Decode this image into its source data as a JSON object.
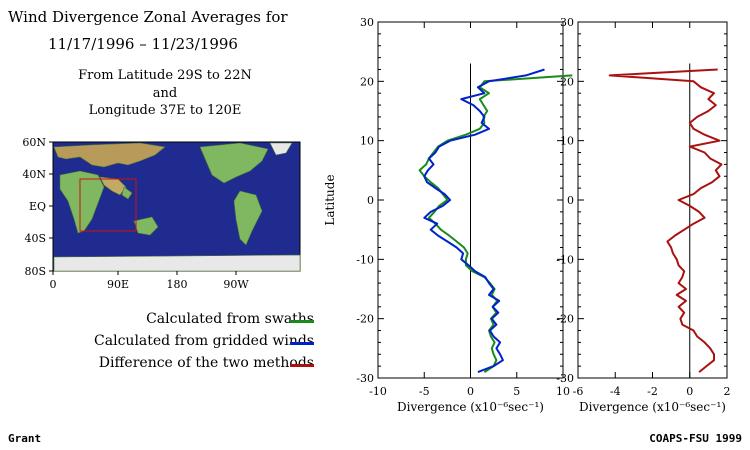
{
  "header": {
    "title_line1": "Wind Divergence Zonal Averages for",
    "title_line2": "11/17/1996 – 11/23/1996",
    "sub_line1": "From Latitude 29S to 22N",
    "sub_line2": "and",
    "sub_line3": "Longitude 37E to 120E"
  },
  "map": {
    "lat_labels": [
      "60N",
      "40N",
      "EQ",
      "40S",
      "80S"
    ],
    "lon_labels": [
      "0",
      "90E",
      "180",
      "90W"
    ]
  },
  "legend": [
    {
      "label": "Calculated from swaths",
      "color": "#1a8a1a"
    },
    {
      "label": "Calculated from gridded winds",
      "color": "#0022cc"
    },
    {
      "label": "Difference of the two methods",
      "color": "#aa1111"
    }
  ],
  "footer": {
    "left": "Grant",
    "right": "COAPS-FSU 1999"
  },
  "chart_data": [
    {
      "type": "line",
      "ylabel": "Latitude",
      "xlabel": "Divergence (x10⁻⁶sec⁻¹)",
      "xlim": [
        -10,
        10
      ],
      "ylim": [
        -30,
        30
      ],
      "xticks": [
        -10,
        -5,
        0,
        5,
        10
      ],
      "yticks": [
        -30,
        -20,
        -10,
        0,
        10,
        20,
        30
      ],
      "series": [
        {
          "name": "Calculated from swaths",
          "color": "#1a8a1a",
          "lat": [
            -29,
            -28,
            -27,
            -26,
            -25,
            -24,
            -23,
            -22,
            -21,
            -20,
            -19,
            -18,
            -17,
            -16,
            -15,
            -14,
            -13,
            -12,
            -11,
            -10,
            -9,
            -8,
            -7,
            -6,
            -5,
            -4,
            -3,
            -2,
            -1,
            0,
            1,
            2,
            3,
            4,
            5,
            6,
            7,
            8,
            9,
            10,
            11,
            12,
            13,
            14,
            15,
            16,
            17,
            18,
            19,
            20,
            21
          ],
          "x": [
            1.5,
            2.5,
            2.8,
            2.5,
            2.3,
            2.6,
            2.2,
            2.0,
            2.5,
            2.2,
            2.8,
            2.4,
            2.9,
            2.3,
            2.6,
            2.1,
            1.5,
            0.2,
            -0.5,
            -0.5,
            -0.3,
            -0.7,
            -1.5,
            -2.3,
            -3.2,
            -3.8,
            -4.5,
            -3.9,
            -3.4,
            -2.5,
            -3.0,
            -3.5,
            -4.3,
            -5.0,
            -5.5,
            -4.8,
            -4.5,
            -4.0,
            -3.5,
            -2.5,
            -0.5,
            1.0,
            1.5,
            1.4,
            1.8,
            1.4,
            1.0,
            2.0,
            1.0,
            1.5,
            11.0
          ]
        },
        {
          "name": "Calculated from gridded winds",
          "color": "#0022cc",
          "lat": [
            -29,
            -28,
            -27,
            -26,
            -25,
            -24,
            -23,
            -22,
            -21,
            -20,
            -19,
            -18,
            -17,
            -16,
            -15,
            -14,
            -13,
            -12,
            -11,
            -10,
            -9,
            -8,
            -7,
            -6,
            -5,
            -4,
            -3,
            -2,
            -1,
            0,
            1,
            2,
            3,
            4,
            5,
            6,
            7,
            8,
            9,
            10,
            11,
            12,
            13,
            14,
            15,
            16,
            17,
            18,
            19,
            20,
            21,
            22
          ],
          "x": [
            0.8,
            2.5,
            3.5,
            3.2,
            2.8,
            3.2,
            2.5,
            2.1,
            2.8,
            2.3,
            3.0,
            2.4,
            3.1,
            2.0,
            2.5,
            2.0,
            1.6,
            0.5,
            -0.2,
            -1.0,
            -0.8,
            -1.5,
            -2.5,
            -3.5,
            -4.3,
            -3.6,
            -5.0,
            -4.3,
            -3.0,
            -2.2,
            -2.8,
            -3.8,
            -4.7,
            -5.0,
            -4.6,
            -4.0,
            -4.5,
            -3.8,
            -3.4,
            -2.2,
            0.5,
            2.0,
            1.2,
            1.5,
            1.0,
            0.3,
            -1.0,
            1.5,
            0.8,
            2.0,
            6.0,
            8.0
          ]
        },
        {
          "name": "Difference of the two methods",
          "color": "#aa1111",
          "panel": 2,
          "lat": [
            -29,
            -28,
            -27,
            -26,
            -25,
            -24,
            -23,
            -22,
            -21,
            -20,
            -19,
            -18,
            -17,
            -16,
            -15,
            -14,
            -13,
            -12,
            -11,
            -10,
            -9,
            -8,
            -7,
            -6,
            -5,
            -4,
            -3,
            -2,
            -1,
            0,
            1,
            2,
            3,
            4,
            5,
            6,
            7,
            8,
            9,
            10,
            11,
            12,
            13,
            14,
            15,
            16,
            17,
            18,
            19,
            20,
            21,
            22
          ],
          "x": [
            0.5,
            0.9,
            1.3,
            1.3,
            1.1,
            0.8,
            0.4,
            0.2,
            -0.4,
            -0.5,
            -0.3,
            -0.6,
            -0.2,
            -0.7,
            -0.2,
            -0.6,
            -0.4,
            -0.3,
            -0.6,
            -0.7,
            -0.9,
            -1.0,
            -1.2,
            -0.8,
            -0.3,
            0.2,
            0.8,
            0.5,
            0.0,
            -0.6,
            0.2,
            0.6,
            1.2,
            1.6,
            1.4,
            1.7,
            1.1,
            0.8,
            0.0,
            1.6,
            0.8,
            0.2,
            0.0,
            0.4,
            1.0,
            1.4,
            1.0,
            1.3,
            0.6,
            0.2,
            -4.3,
            1.5
          ]
        }
      ]
    },
    {
      "type": "line",
      "xlabel": "Divergence (x10⁻⁶sec⁻¹)",
      "xlim": [
        -6,
        2
      ],
      "ylim": [
        -30,
        30
      ],
      "xticks": [
        -6,
        -4,
        -2,
        0,
        2
      ],
      "yticks": [
        -30,
        -20,
        -10,
        0,
        10,
        20,
        30
      ]
    }
  ]
}
